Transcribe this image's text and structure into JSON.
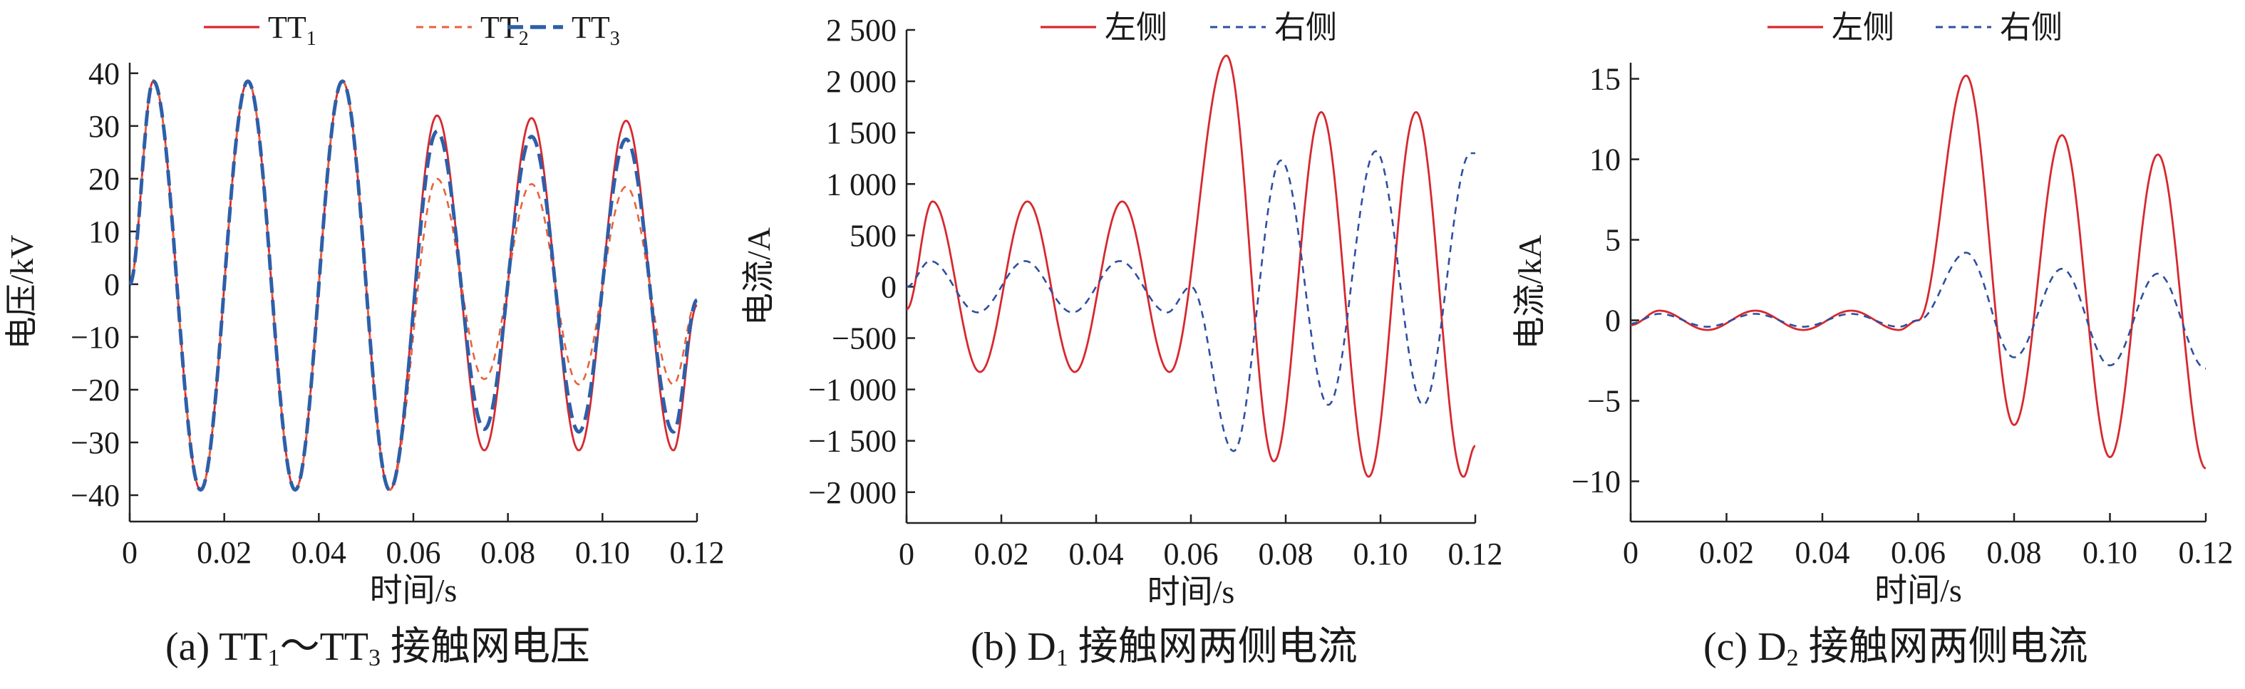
{
  "chart_data": [
    {
      "type": "line",
      "panel": "a",
      "caption": {
        "prefix": "(a) TT",
        "sub1": "1",
        "mid": "～TT",
        "sub2": "3",
        "suffix": " 接触网电压"
      },
      "xlabel": "时间/s",
      "ylabel": "电压/kV",
      "xlim": [
        0,
        0.12
      ],
      "ylim": [
        -45,
        42
      ],
      "xticks": [
        0,
        0.02,
        0.04,
        0.06,
        0.08,
        0.1,
        0.12
      ],
      "xtick_labels": [
        "0",
        "0.02",
        "0.04",
        "0.06",
        "0.08",
        "0.10",
        "0.12"
      ],
      "yticks": [
        -40,
        -30,
        -20,
        -10,
        0,
        10,
        20,
        30,
        40
      ],
      "ytick_labels": [
        "−40",
        "−30",
        "−20",
        "−10",
        "0",
        "10",
        "20",
        "30",
        "40"
      ],
      "grid": false,
      "legend_position": "top",
      "series": [
        {
          "name": "TT",
          "name_sub": "1",
          "color": "#d7282f",
          "dash": "solid",
          "x": [
            0,
            0.005,
            0.015,
            0.025,
            0.035,
            0.045,
            0.055,
            0.065,
            0.075,
            0.085,
            0.095,
            0.105,
            0.115,
            0.12
          ],
          "y": [
            0,
            38.5,
            -39,
            38.5,
            -39,
            38.5,
            -39,
            32,
            -31.5,
            31.5,
            -31.5,
            31,
            -31.5,
            -4
          ]
        },
        {
          "name": "TT",
          "name_sub": "2",
          "color": "#e8623a",
          "dash": "dashed",
          "x": [
            0,
            0.005,
            0.015,
            0.025,
            0.035,
            0.045,
            0.055,
            0.065,
            0.075,
            0.085,
            0.095,
            0.105,
            0.115,
            0.12
          ],
          "y": [
            0,
            38.5,
            -39,
            38.5,
            -39,
            38.5,
            -39,
            20,
            -18,
            19,
            -19,
            18.5,
            -19,
            -3
          ]
        },
        {
          "name": "TT",
          "name_sub": "3",
          "color": "#2e5fa8",
          "dash": "bold-dashed",
          "x": [
            0,
            0.005,
            0.015,
            0.025,
            0.035,
            0.045,
            0.055,
            0.065,
            0.075,
            0.085,
            0.095,
            0.105,
            0.115,
            0.12
          ],
          "y": [
            0,
            38.5,
            -39,
            38.5,
            -39,
            38.5,
            -39,
            29,
            -27.5,
            28,
            -28,
            27.5,
            -28,
            -3
          ]
        }
      ]
    },
    {
      "type": "line",
      "panel": "b",
      "caption": {
        "prefix": "(b) D",
        "sub1": "1",
        "suffix": " 接触网两侧电流"
      },
      "xlabel": "时间/s",
      "ylabel": "电流/A",
      "xlim": [
        0,
        0.12
      ],
      "ylim": [
        -2300,
        2500
      ],
      "xticks": [
        0,
        0.02,
        0.04,
        0.06,
        0.08,
        0.1,
        0.12
      ],
      "xtick_labels": [
        "0",
        "0.02",
        "0.04",
        "0.06",
        "0.08",
        "0.10",
        "0.12"
      ],
      "yticks": [
        -2000,
        -1500,
        -1000,
        -500,
        0,
        500,
        1000,
        1500,
        2000,
        2500
      ],
      "ytick_labels": [
        "−2 000",
        "−1 500",
        "−1 000",
        "−500",
        "0",
        "500",
        "1 000",
        "1 500",
        "2 000",
        "2 500"
      ],
      "grid": false,
      "legend_position": "top",
      "series": [
        {
          "name": "左侧",
          "color": "#d7282f",
          "dash": "solid",
          "x": [
            0,
            0.0055,
            0.0155,
            0.0255,
            0.0355,
            0.0455,
            0.0555,
            0.0675,
            0.0775,
            0.0875,
            0.0975,
            0.1075,
            0.1175,
            0.12
          ],
          "y": [
            -220,
            830,
            -830,
            830,
            -830,
            830,
            -830,
            2250,
            -1700,
            1700,
            -1850,
            1700,
            -1850,
            -1550
          ]
        },
        {
          "name": "右侧",
          "color": "#2e4fa0",
          "dash": "dashed",
          "x": [
            0,
            0.005,
            0.015,
            0.025,
            0.035,
            0.045,
            0.055,
            0.06,
            0.069,
            0.079,
            0.089,
            0.099,
            0.109,
            0.119,
            0.12
          ],
          "y": [
            0,
            250,
            -250,
            250,
            -250,
            250,
            -250,
            0,
            -1600,
            1230,
            -1150,
            1320,
            -1150,
            1300,
            1300
          ]
        }
      ]
    },
    {
      "type": "line",
      "panel": "c",
      "caption": {
        "prefix": "(c) D",
        "sub1": "2",
        "suffix": " 接触网两侧电流"
      },
      "xlabel": "时间/s",
      "ylabel": "电流/kA",
      "xlim": [
        0,
        0.12
      ],
      "ylim": [
        -12.5,
        16
      ],
      "xticks": [
        0,
        0.02,
        0.04,
        0.06,
        0.08,
        0.1,
        0.12
      ],
      "xtick_labels": [
        "0",
        "0.02",
        "0.04",
        "0.06",
        "0.08",
        "0.10",
        "0.12"
      ],
      "yticks": [
        -10,
        -5,
        0,
        5,
        10,
        15
      ],
      "ytick_labels": [
        "−10",
        "−5",
        "0",
        "5",
        "10",
        "15"
      ],
      "grid": false,
      "legend_position": "top",
      "series": [
        {
          "name": "左侧",
          "color": "#d7282f",
          "dash": "solid",
          "x": [
            0,
            0.006,
            0.016,
            0.026,
            0.036,
            0.046,
            0.056,
            0.06,
            0.07,
            0.08,
            0.09,
            0.1,
            0.11,
            0.12
          ],
          "y": [
            -0.3,
            0.6,
            -0.6,
            0.6,
            -0.6,
            0.6,
            -0.6,
            0,
            15.2,
            -6.5,
            11.5,
            -8.5,
            10.3,
            -9.2
          ]
        },
        {
          "name": "右侧",
          "color": "#2e4fa0",
          "dash": "dashed",
          "x": [
            0,
            0.006,
            0.016,
            0.026,
            0.036,
            0.046,
            0.056,
            0.06,
            0.07,
            0.08,
            0.09,
            0.1,
            0.11,
            0.12
          ],
          "y": [
            -0.2,
            0.4,
            -0.4,
            0.4,
            -0.4,
            0.4,
            -0.4,
            0,
            4.2,
            -2.3,
            3.2,
            -2.8,
            2.9,
            -3
          ]
        }
      ]
    }
  ]
}
